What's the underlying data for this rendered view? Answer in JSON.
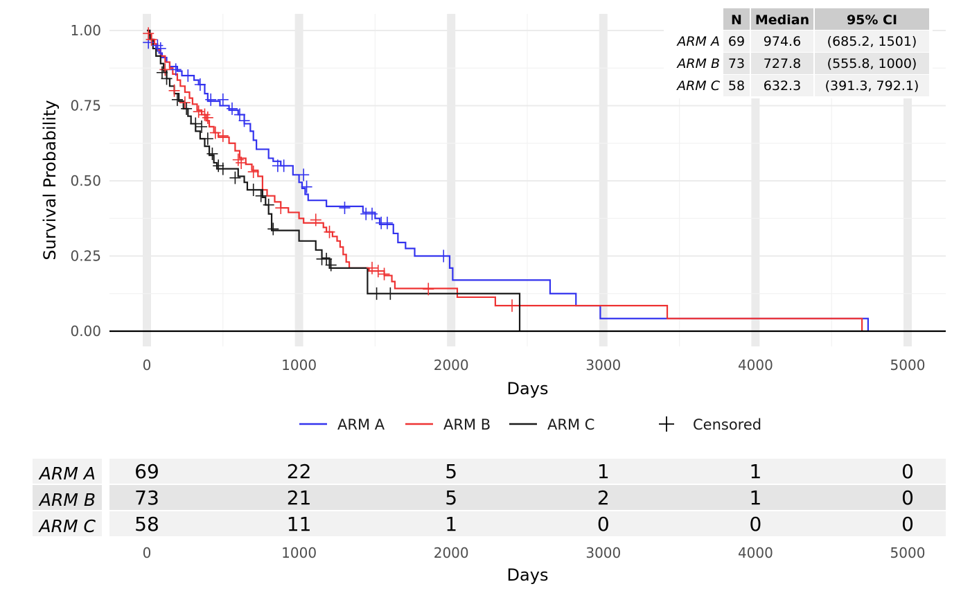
{
  "chart_data": {
    "type": "line",
    "subtype": "kaplan-meier",
    "xlabel": "Days",
    "ylabel": "Survival Probability",
    "xlim": [
      -250,
      5250
    ],
    "ylim": [
      -0.05,
      1.05
    ],
    "x_ticks": [
      0,
      1000,
      2000,
      3000,
      4000,
      5000
    ],
    "x_tick_labels": [
      "0",
      "1000",
      "2000",
      "3000",
      "4000",
      "5000"
    ],
    "y_ticks": [
      0,
      0.25,
      0.5,
      0.75,
      1.0
    ],
    "y_tick_labels": [
      "0.00",
      "0.25",
      "0.50",
      "0.75",
      "1.00"
    ],
    "grid": true,
    "legend": {
      "position": "bottom",
      "series_labels": [
        "ARM A",
        "ARM B",
        "ARM C"
      ],
      "censored_label": "Censored"
    },
    "series": [
      {
        "name": "ARM A",
        "color": "#3333ee",
        "steps": [
          [
            0,
            1.0
          ],
          [
            15,
            0.985
          ],
          [
            25,
            0.97
          ],
          [
            45,
            0.955
          ],
          [
            60,
            0.94
          ],
          [
            80,
            0.925
          ],
          [
            100,
            0.91
          ],
          [
            130,
            0.895
          ],
          [
            150,
            0.88
          ],
          [
            200,
            0.865
          ],
          [
            230,
            0.85
          ],
          [
            310,
            0.835
          ],
          [
            340,
            0.82
          ],
          [
            380,
            0.79
          ],
          [
            400,
            0.765
          ],
          [
            480,
            0.75
          ],
          [
            540,
            0.735
          ],
          [
            600,
            0.72
          ],
          [
            640,
            0.69
          ],
          [
            680,
            0.665
          ],
          [
            700,
            0.635
          ],
          [
            720,
            0.605
          ],
          [
            800,
            0.575
          ],
          [
            830,
            0.565
          ],
          [
            880,
            0.55
          ],
          [
            960,
            0.52
          ],
          [
            1000,
            0.495
          ],
          [
            1020,
            0.475
          ],
          [
            1040,
            0.455
          ],
          [
            1060,
            0.435
          ],
          [
            1180,
            0.415
          ],
          [
            1420,
            0.395
          ],
          [
            1500,
            0.375
          ],
          [
            1530,
            0.355
          ],
          [
            1620,
            0.325
          ],
          [
            1650,
            0.295
          ],
          [
            1700,
            0.275
          ],
          [
            1760,
            0.25
          ],
          [
            1990,
            0.21
          ],
          [
            2010,
            0.17
          ],
          [
            2650,
            0.125
          ],
          [
            2820,
            0.085
          ],
          [
            2980,
            0.042
          ],
          [
            4740,
            0.0
          ]
        ],
        "censored": [
          [
            10,
            0.96
          ],
          [
            70,
            0.95
          ],
          [
            90,
            0.94
          ],
          [
            190,
            0.87
          ],
          [
            270,
            0.85
          ],
          [
            350,
            0.82
          ],
          [
            420,
            0.77
          ],
          [
            500,
            0.77
          ],
          [
            560,
            0.74
          ],
          [
            610,
            0.72
          ],
          [
            640,
            0.7
          ],
          [
            860,
            0.55
          ],
          [
            900,
            0.55
          ],
          [
            1030,
            0.52
          ],
          [
            1050,
            0.48
          ],
          [
            1300,
            0.41
          ],
          [
            1440,
            0.39
          ],
          [
            1480,
            0.39
          ],
          [
            1540,
            0.36
          ],
          [
            1580,
            0.36
          ],
          [
            1950,
            0.25
          ]
        ]
      },
      {
        "name": "ARM B",
        "color": "#ee3333",
        "steps": [
          [
            0,
            1.0
          ],
          [
            15,
            0.985
          ],
          [
            30,
            0.97
          ],
          [
            50,
            0.955
          ],
          [
            70,
            0.935
          ],
          [
            90,
            0.915
          ],
          [
            120,
            0.895
          ],
          [
            150,
            0.875
          ],
          [
            170,
            0.855
          ],
          [
            200,
            0.835
          ],
          [
            220,
            0.815
          ],
          [
            250,
            0.795
          ],
          [
            280,
            0.775
          ],
          [
            300,
            0.755
          ],
          [
            330,
            0.735
          ],
          [
            360,
            0.72
          ],
          [
            390,
            0.7
          ],
          [
            410,
            0.68
          ],
          [
            440,
            0.66
          ],
          [
            470,
            0.645
          ],
          [
            540,
            0.625
          ],
          [
            580,
            0.6
          ],
          [
            610,
            0.575
          ],
          [
            650,
            0.555
          ],
          [
            690,
            0.535
          ],
          [
            730,
            0.515
          ],
          [
            760,
            0.47
          ],
          [
            790,
            0.45
          ],
          [
            840,
            0.43
          ],
          [
            880,
            0.41
          ],
          [
            930,
            0.395
          ],
          [
            1000,
            0.375
          ],
          [
            1030,
            0.36
          ],
          [
            1160,
            0.345
          ],
          [
            1180,
            0.33
          ],
          [
            1220,
            0.315
          ],
          [
            1250,
            0.3
          ],
          [
            1270,
            0.28
          ],
          [
            1290,
            0.255
          ],
          [
            1310,
            0.23
          ],
          [
            1330,
            0.21
          ],
          [
            1460,
            0.2
          ],
          [
            1560,
            0.185
          ],
          [
            1610,
            0.165
          ],
          [
            1630,
            0.142
          ],
          [
            2040,
            0.113
          ],
          [
            2290,
            0.085
          ],
          [
            3420,
            0.042
          ],
          [
            4700,
            0.0
          ]
        ],
        "censored": [
          [
            10,
            0.99
          ],
          [
            30,
            0.97
          ],
          [
            120,
            0.87
          ],
          [
            180,
            0.8
          ],
          [
            250,
            0.76
          ],
          [
            340,
            0.73
          ],
          [
            380,
            0.72
          ],
          [
            400,
            0.71
          ],
          [
            450,
            0.66
          ],
          [
            500,
            0.65
          ],
          [
            600,
            0.57
          ],
          [
            620,
            0.56
          ],
          [
            700,
            0.53
          ],
          [
            880,
            0.41
          ],
          [
            1110,
            0.37
          ],
          [
            1200,
            0.33
          ],
          [
            1480,
            0.21
          ],
          [
            1520,
            0.2
          ],
          [
            1560,
            0.19
          ],
          [
            1850,
            0.14
          ],
          [
            2400,
            0.085
          ]
        ]
      },
      {
        "name": "ARM C",
        "color": "#1a1a1a",
        "steps": [
          [
            0,
            1.0
          ],
          [
            20,
            0.97
          ],
          [
            40,
            0.94
          ],
          [
            60,
            0.915
          ],
          [
            90,
            0.89
          ],
          [
            110,
            0.865
          ],
          [
            130,
            0.84
          ],
          [
            150,
            0.815
          ],
          [
            180,
            0.79
          ],
          [
            210,
            0.765
          ],
          [
            240,
            0.74
          ],
          [
            270,
            0.715
          ],
          [
            290,
            0.69
          ],
          [
            320,
            0.665
          ],
          [
            350,
            0.64
          ],
          [
            380,
            0.615
          ],
          [
            410,
            0.585
          ],
          [
            440,
            0.56
          ],
          [
            460,
            0.54
          ],
          [
            600,
            0.515
          ],
          [
            640,
            0.495
          ],
          [
            660,
            0.47
          ],
          [
            760,
            0.445
          ],
          [
            780,
            0.42
          ],
          [
            800,
            0.39
          ],
          [
            820,
            0.335
          ],
          [
            1000,
            0.3
          ],
          [
            1110,
            0.27
          ],
          [
            1150,
            0.243
          ],
          [
            1200,
            0.21
          ],
          [
            1450,
            0.125
          ],
          [
            2450,
            0.0
          ]
        ],
        "censored": [
          [
            100,
            0.86
          ],
          [
            130,
            0.84
          ],
          [
            200,
            0.77
          ],
          [
            260,
            0.74
          ],
          [
            320,
            0.69
          ],
          [
            360,
            0.68
          ],
          [
            400,
            0.64
          ],
          [
            430,
            0.59
          ],
          [
            470,
            0.55
          ],
          [
            500,
            0.54
          ],
          [
            580,
            0.51
          ],
          [
            700,
            0.47
          ],
          [
            750,
            0.45
          ],
          [
            800,
            0.42
          ],
          [
            830,
            0.34
          ],
          [
            1150,
            0.24
          ],
          [
            1180,
            0.24
          ],
          [
            1210,
            0.22
          ],
          [
            1510,
            0.125
          ],
          [
            1600,
            0.125
          ]
        ]
      }
    ],
    "summary_table": {
      "headers": [
        "N",
        "Median",
        "95% CI"
      ],
      "rows": [
        {
          "arm": "ARM A",
          "n": "69",
          "median": "974.6",
          "ci": "(685.2, 1501)"
        },
        {
          "arm": "ARM B",
          "n": "73",
          "median": "727.8",
          "ci": "(555.8, 1000)"
        },
        {
          "arm": "ARM C",
          "n": "58",
          "median": "632.3",
          "ci": "(391.3, 792.1)"
        }
      ]
    },
    "risk_table": {
      "xlabel": "Days",
      "times": [
        0,
        1000,
        2000,
        3000,
        4000,
        5000
      ],
      "time_labels": [
        "0",
        "1000",
        "2000",
        "3000",
        "4000",
        "5000"
      ],
      "rows": [
        {
          "arm": "ARM A",
          "counts": [
            "69",
            "22",
            "5",
            "1",
            "1",
            "0"
          ]
        },
        {
          "arm": "ARM B",
          "counts": [
            "73",
            "21",
            "5",
            "2",
            "1",
            "0"
          ]
        },
        {
          "arm": "ARM C",
          "counts": [
            "58",
            "11",
            "1",
            "0",
            "0",
            "0"
          ]
        }
      ]
    }
  }
}
